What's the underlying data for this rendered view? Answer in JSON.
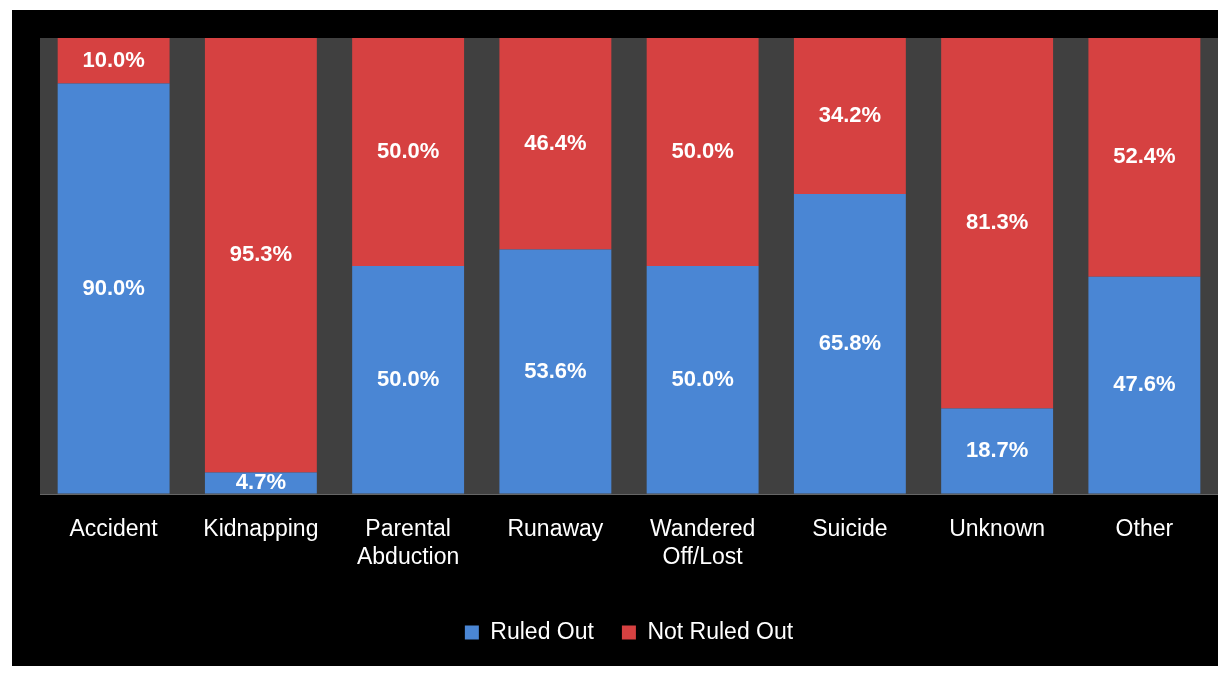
{
  "chart_data": {
    "type": "bar",
    "stacked": true,
    "categories": [
      "Accident",
      "Kidnapping",
      "Parental Abduction",
      "Runaway",
      "Wandered Off/Lost",
      "Suicide",
      "Unknown",
      "Other"
    ],
    "series": [
      {
        "name": "Ruled Out",
        "color": "#4a86d4",
        "values": [
          90.0,
          4.7,
          50.0,
          53.6,
          50.0,
          65.8,
          18.7,
          47.6
        ],
        "value_labels": [
          "90.0%",
          "4.7%",
          "50.0%",
          "53.6%",
          "50.0%",
          "65.8%",
          "18.7%",
          "47.6%"
        ]
      },
      {
        "name": "Not Ruled Out",
        "color": "#d64141",
        "values": [
          10.0,
          95.3,
          50.0,
          46.4,
          50.0,
          34.2,
          81.3,
          52.4
        ],
        "value_labels": [
          "10.0%",
          "95.3%",
          "50.0%",
          "46.4%",
          "50.0%",
          "34.2%",
          "81.3%",
          "52.4%"
        ]
      }
    ],
    "legend": "bottom",
    "grid": false
  }
}
